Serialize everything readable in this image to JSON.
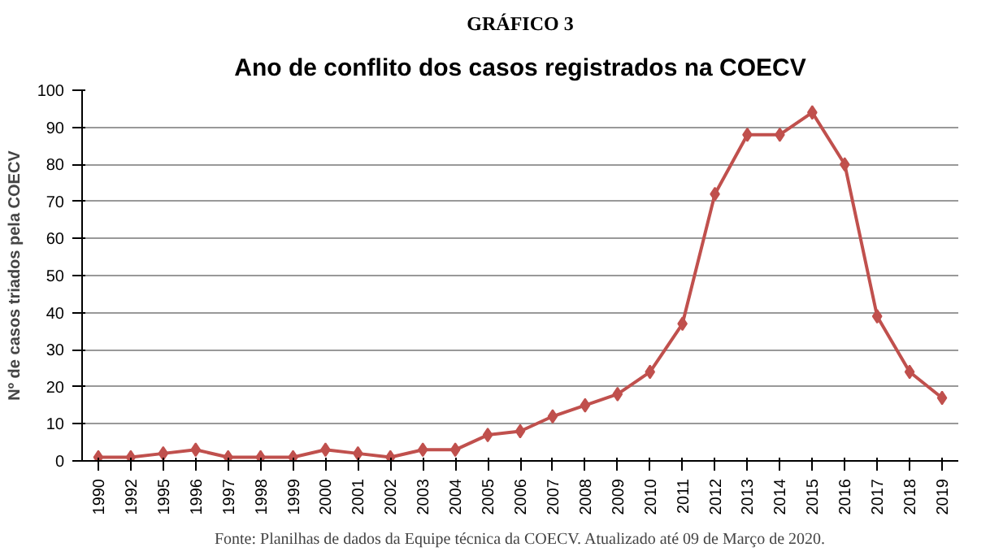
{
  "chart_data": {
    "type": "line",
    "title": "Ano de conflito dos casos registrados na COECV",
    "ylabel": "Nº de casos triados pela COECV",
    "categories": [
      "1990",
      "1992",
      "1995",
      "1996",
      "1997",
      "1998",
      "1999",
      "2000",
      "2001",
      "2002",
      "2003",
      "2004",
      "2005",
      "2006",
      "2007",
      "2008",
      "2009",
      "2010",
      "2011",
      "2012",
      "2013",
      "2014",
      "2015",
      "2016",
      "2017",
      "2018",
      "2019"
    ],
    "series": [
      {
        "color": "#c0504d",
        "values": [
          1,
          1,
          2,
          3,
          1,
          1,
          1,
          3,
          2,
          1,
          3,
          3,
          7,
          8,
          12,
          15,
          18,
          24,
          37,
          72,
          88,
          88,
          94,
          80,
          39,
          24,
          17
        ]
      }
    ],
    "ylim": [
      0,
      100
    ],
    "yticks": [
      0,
      10,
      20,
      30,
      40,
      50,
      60,
      70,
      80,
      90,
      100
    ],
    "grid": "y",
    "marker": "diamond",
    "line_style": "solid",
    "annotations": [
      "GRÁFICO 3",
      "Fonte: Planilhas de dados da Equipe técnica da COECV. Atualizado até 09 de Março de 2020."
    ]
  }
}
